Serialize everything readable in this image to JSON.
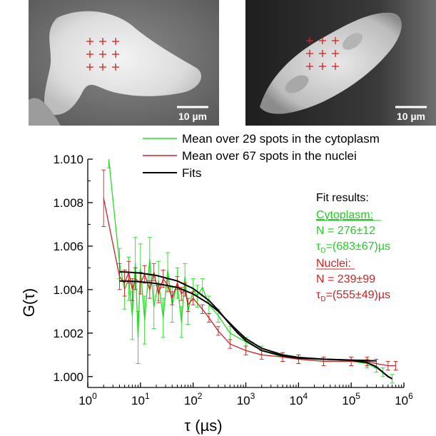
{
  "panels": [
    {
      "scale_bar_label": "10 µm"
    },
    {
      "scale_bar_label": "10 µm"
    }
  ],
  "chart_data": {
    "type": "line",
    "title": "",
    "ylabel": "G(τ)",
    "xlabel_prefix": "τ (",
    "xlabel_unit": "µs",
    "xlabel_suffix": ")",
    "x_scale": "log",
    "xlim": [
      1,
      1000000
    ],
    "ylim": [
      0.9995,
      1.01
    ],
    "x_ticks": [
      {
        "base": "10",
        "exp": "0"
      },
      {
        "base": "10",
        "exp": "1"
      },
      {
        "base": "10",
        "exp": "2"
      },
      {
        "base": "10",
        "exp": "3"
      },
      {
        "base": "10",
        "exp": "4"
      },
      {
        "base": "10",
        "exp": "5"
      },
      {
        "base": "10",
        "exp": "6"
      }
    ],
    "x_tick_values": [
      1,
      10,
      100,
      1000,
      10000,
      100000,
      1000000
    ],
    "y_ticks": [
      "1.000",
      "1.002",
      "1.004",
      "1.006",
      "1.008",
      "1.010"
    ],
    "y_tick_values": [
      1.0,
      1.002,
      1.004,
      1.006,
      1.008,
      1.01
    ],
    "legend_position": "top",
    "series": [
      {
        "name": "Mean over 29 spots in the cytoplasm",
        "color": "#22dd22",
        "x": [
          2.5,
          4,
          5,
          6,
          7,
          8,
          9,
          10,
          12,
          15,
          18,
          22,
          27,
          33,
          40,
          50,
          60,
          70,
          80,
          100,
          120,
          150,
          200,
          300,
          500,
          1000,
          2000,
          5000,
          10000,
          30000,
          100000,
          200000,
          300000,
          400000,
          600000
        ],
        "y": [
          1.01,
          1.0052,
          1.004,
          1.0045,
          1.0028,
          1.0052,
          1.0018,
          1.005,
          1.0026,
          1.0054,
          1.0032,
          1.0044,
          1.0027,
          1.0049,
          1.0033,
          1.0043,
          1.0025,
          1.0046,
          1.003,
          1.004,
          1.0037,
          1.0041,
          1.0033,
          1.0028,
          1.002,
          1.0016,
          1.0012,
          1.0009,
          1.0008,
          1.0007,
          1.0007,
          1.0006,
          1.0004,
          1.0002,
          0.9999
        ],
        "errors": [
          0.0004,
          0.0007,
          0.0009,
          0.001,
          0.0011,
          0.0012,
          0.0012,
          0.0011,
          0.0011,
          0.001,
          0.001,
          0.0009,
          0.0009,
          0.0008,
          0.0008,
          0.0007,
          0.0007,
          0.0006,
          0.0006,
          0.0005,
          0.0005,
          0.0004,
          0.0004,
          0.0003,
          0.0003,
          0.0002,
          0.0002,
          0.0002,
          0.0002,
          0.0002,
          0.0002,
          0.0002,
          0.0002,
          0.0002,
          0.0002
        ]
      },
      {
        "name": "Mean over 67 spots in the nuclei",
        "color": "#cc2222",
        "x": [
          2,
          4,
          5,
          6,
          7,
          8,
          10,
          12,
          15,
          18,
          22,
          27,
          33,
          40,
          50,
          60,
          70,
          80,
          100,
          150,
          200,
          300,
          500,
          1000,
          2000,
          5000,
          10000,
          30000,
          100000,
          200000,
          300000,
          500000,
          700000
        ],
        "y": [
          1.0082,
          1.0046,
          1.0043,
          1.0048,
          1.004,
          1.0045,
          1.0043,
          1.0047,
          1.004,
          1.0048,
          1.0038,
          1.0045,
          1.0042,
          1.0036,
          1.0043,
          1.0038,
          1.004,
          1.0033,
          1.0036,
          1.0031,
          1.0027,
          1.0021,
          1.0015,
          1.0012,
          1.001,
          1.0009,
          1.0008,
          1.0007,
          1.0007,
          1.0007,
          1.0006,
          1.0005,
          1.0005
        ],
        "errors": [
          0.0013,
          0.0006,
          0.0006,
          0.0005,
          0.0005,
          0.0005,
          0.0005,
          0.0004,
          0.0004,
          0.0004,
          0.0004,
          0.0004,
          0.0003,
          0.0003,
          0.0003,
          0.0003,
          0.0003,
          0.0003,
          0.0003,
          0.0002,
          0.0002,
          0.0002,
          0.0002,
          0.0002,
          0.0002,
          0.0002,
          0.0002,
          0.0002,
          0.0002,
          0.0002,
          0.0002,
          0.0002,
          0.0002
        ]
      },
      {
        "name": "Fits",
        "color": "#000000",
        "x": [
          4,
          6,
          10,
          20,
          50,
          100,
          200,
          300,
          500,
          700,
          1000,
          2000,
          5000,
          10000,
          30000,
          100000,
          200000,
          300000,
          400000,
          500000,
          600000
        ],
        "y": [
          1.00482,
          1.0048,
          1.00476,
          1.00465,
          1.0044,
          1.00405,
          1.0035,
          1.00305,
          1.0024,
          1.002,
          1.00165,
          1.0012,
          1.00095,
          1.00085,
          1.0008,
          1.00075,
          1.00065,
          1.00045,
          1.0002,
          1.0,
          0.9999
        ],
        "x2": [
          4,
          6,
          10,
          20,
          50,
          100,
          200,
          300,
          500,
          700,
          1000,
          2000,
          5000,
          10000,
          30000,
          100000,
          200000,
          300000
        ],
        "y2": [
          1.0044,
          1.00439,
          1.00436,
          1.00428,
          1.0041,
          1.0038,
          1.00335,
          1.003,
          1.00245,
          1.0021,
          1.00175,
          1.0013,
          1.001,
          1.00088,
          1.0008,
          1.00076,
          1.00074,
          1.00072
        ]
      }
    ],
    "annotation": {
      "heading": "Fit results:",
      "cytoplasm_label": "Cytoplasm:",
      "cytoplasm_n": "N = 276±12",
      "cytoplasm_tau_sym": "τ",
      "cytoplasm_tau_sub": "D",
      "cytoplasm_tau_val": "=(683±67)µs",
      "nuclei_label": "Nuclei:",
      "nuclei_n": "N = 239±99",
      "nuclei_tau_sym": "τ",
      "nuclei_tau_sub": "D",
      "nuclei_tau_val": "=(555±49)µs"
    }
  },
  "colors": {
    "cytoplasm": "#22dd22",
    "nuclei": "#cc2222",
    "fit": "#000000",
    "cross_markers": "#d42020"
  }
}
